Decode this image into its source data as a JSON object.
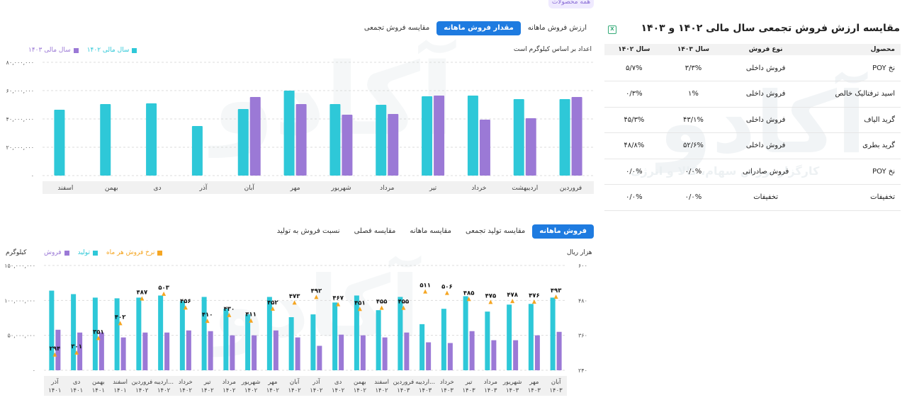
{
  "top_badge": "همه محصولات",
  "title": "مقایسه ارزش فروش تجمعی سال مالی ۱۴۰۲ و ۱۴۰۳",
  "table": {
    "headers": [
      "محصول",
      "نوع فروش",
      "سال ۱۴۰۳",
      "سال ۱۴۰۲"
    ],
    "rows": [
      [
        "نخ POY",
        "فروش داخلی",
        "۳/۳%",
        "۵/۷%"
      ],
      [
        "اسید ترفتالیک خالص",
        "فروش داخلی",
        "۱%",
        "۰/۳%"
      ],
      [
        "گرید الیاف",
        "فروش داخلی",
        "۴۳/۱%",
        "۴۵/۳%"
      ],
      [
        "گرید بطری",
        "فروش داخلی",
        "۵۲/۶%",
        "۴۸/۸%"
      ],
      [
        "نخ POY",
        "فروش صادراتی",
        "۰/۰%",
        "۰/۰%"
      ],
      [
        "تخفیفات",
        "تخفیفات",
        "۰/۰%",
        "۰/۰%"
      ]
    ]
  },
  "top_tabs": [
    "ارزش فروش ماهانه",
    "مقدار فروش ماهانه",
    "مقایسه فروش تجمعی"
  ],
  "top_note": "اعداد بر اساس کیلوگرم است",
  "bottom_tabs": [
    "فروش ماهانه",
    "مقایسه تولید تجمعی",
    "مقایسه ماهانه",
    "مقایسه فصلی",
    "نسبت فروش به تولید"
  ],
  "bottom_unit_left": "کیلوگرم",
  "bottom_unit_right": "هزار ریال",
  "watermark": {
    "logo": "آکادو",
    "tagline": "کارگزار بورس سهام، کالا و انرژی"
  },
  "colors": {
    "cyan": "#2ec8d8",
    "purple": "#9b79d6",
    "orange": "#f5a623",
    "accent": "#1e7be0"
  },
  "chart_data": [
    {
      "type": "bar",
      "categories": [
        "فروردین",
        "اردیبهشت",
        "خرداد",
        "تیر",
        "مرداد",
        "شهریور",
        "مهر",
        "آبان",
        "آذر",
        "دی",
        "بهمن",
        "اسفند"
      ],
      "series": [
        {
          "name": "سال مالی ۱۴۰۲",
          "color": "#2ec8d8",
          "values": [
            54000000,
            54000000,
            56500000,
            56000000,
            50000000,
            50500000,
            60000000,
            47000000,
            35000000,
            51000000,
            50500000,
            46500000
          ]
        },
        {
          "name": "سال مالی ۱۴۰۳",
          "color": "#9b79d6",
          "values": [
            55500000,
            40500000,
            39500000,
            56500000,
            43500000,
            43000000,
            50500000,
            55500000,
            null,
            null,
            null,
            null
          ]
        }
      ],
      "ylim": [
        0,
        80000000
      ],
      "yticks": [
        "۰",
        "۲۰,۰۰۰,۰۰۰",
        "۴۰,۰۰۰,۰۰۰",
        "۶۰,۰۰۰,۰۰۰",
        "۸۰,۰۰۰,۰۰۰"
      ],
      "grid": true,
      "legend": "top-left"
    },
    {
      "type": "bar",
      "categories": [
        "آذر ۱۴۰۱",
        "دی ۱۴۰۱",
        "بهمن ۱۴۰۱",
        "اسفند ۱۴۰۱",
        "فروردین ۱۴۰۲",
        "اردیبه... ۱۴۰۲",
        "خرداد ۱۴۰۲",
        "تیر ۱۴۰۲",
        "مرداد ۱۴۰۲",
        "شهریور ۱۴۰۲",
        "مهر ۱۴۰۲",
        "آبان ۱۴۰۲",
        "آذر ۱۴۰۲",
        "دی ۱۴۰۲",
        "بهمن ۱۴۰۲",
        "اسفند ۱۴۰۲",
        "فروردین ۱۴۰۳",
        "اردیبه... ۱۴۰۳",
        "خرداد ۱۴۰۳",
        "تیر ۱۴۰۳",
        "مرداد ۱۴۰۳",
        "شهریور ۱۴۰۳",
        "مهر ۱۴۰۳",
        "آبان ۱۴۰۳"
      ],
      "series": [
        {
          "name": "تولید",
          "color": "#2ec8d8",
          "values": [
            114000000,
            109000000,
            104000000,
            103000000,
            104000000,
            107000000,
            99000000,
            105000000,
            88000000,
            80000000,
            105000000,
            76000000,
            80000000,
            97000000,
            107000000,
            86000000,
            105000000,
            66000000,
            88000000,
            106000000,
            84000000,
            94000000,
            95000000,
            104000000
          ]
        },
        {
          "name": "فروش",
          "color": "#9b79d6",
          "values": [
            58000000,
            54000000,
            54000000,
            47000000,
            54000000,
            54000000,
            57000000,
            56000000,
            50000000,
            50000000,
            57000000,
            47000000,
            35000000,
            51000000,
            50000000,
            47000000,
            54000000,
            40000000,
            39000000,
            56000000,
            43000000,
            43000000,
            50000000,
            55000000
          ]
        },
        {
          "name": "نرخ فروش هر ماه",
          "color": "#f5a623",
          "values": [
            294,
            301,
            351,
            402,
            487,
            503,
            456,
            410,
            430,
            411,
            452,
            473,
            492,
            467,
            451,
            455,
            455,
            511,
            506,
            485,
            475,
            478,
            476,
            493
          ]
        }
      ],
      "ylim": [
        0,
        150000000
      ],
      "yticks": [
        "۰",
        "۵۰,۰۰۰,۰۰۰",
        "۱۰۰,۰۰۰,۰۰۰",
        "۱۵۰,۰۰۰,۰۰۰"
      ],
      "y2lim": [
        240,
        600
      ],
      "y2ticks": [
        "۲۴۰",
        "۳۶۰",
        "۴۸۰",
        "۶۰۰"
      ],
      "rate_labels": [
        "۲۹۴",
        "۳۰۱",
        "۳۵۱",
        "۴۰۲",
        "۴۸۷",
        "۵۰۳",
        "۴۵۶",
        "۴۱۰",
        "۴۳۰",
        "۴۱۱",
        "۴۵۲",
        "۴۷۳",
        "۴۹۲",
        "۴۶۷",
        "۴۵۱",
        "۴۵۵",
        "۴۵۵",
        "۵۱۱",
        "۵۰۶",
        "۴۸۵",
        "۴۷۵",
        "۴۷۸",
        "۴۷۶",
        "۴۹۳"
      ],
      "grid": true,
      "legend": "top-left"
    }
  ]
}
